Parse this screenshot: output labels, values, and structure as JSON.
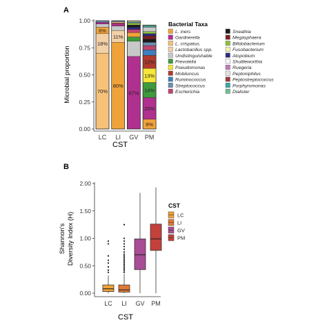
{
  "chart_data": [
    {
      "panel": "A",
      "type": "bar",
      "stacked": true,
      "xlabel": "CST",
      "ylabel": "Microbial proportion",
      "ylim": [
        0,
        1
      ],
      "yticks": [
        "0.00",
        "0.25",
        "0.50",
        "0.75",
        "1.00"
      ],
      "categories": [
        "LC",
        "LI",
        "GV",
        "PM"
      ],
      "legend_title": "Bacterial Taxa",
      "legend_position": "right",
      "taxa": [
        {
          "name": "L. iners",
          "color": "#f0a23a"
        },
        {
          "name": "Gardnerella",
          "color": "#b0308f"
        },
        {
          "name": "L. crispatus.",
          "color": "#f6c27a"
        },
        {
          "name": "Lactobacillus spp.",
          "color": "#f3d0a6"
        },
        {
          "name": "Undistinguishable",
          "color": "#c8c8c8"
        },
        {
          "name": "Prevotella",
          "color": "#3e9a3c"
        },
        {
          "name": "Pseudomonas",
          "color": "#f6e73a"
        },
        {
          "name": "Mobiluncus",
          "color": "#b03a2e"
        },
        {
          "name": "Ruminococcus",
          "color": "#3d7fbf"
        },
        {
          "name": "Streptococcus",
          "color": "#6a8fb0"
        },
        {
          "name": "Escherichia",
          "color": "#c0436e"
        },
        {
          "name": "Sneathia",
          "color": "#1a1a1a"
        },
        {
          "name": "Megasphaera",
          "color": "#7a1f1f"
        },
        {
          "name": "Bifidobacterium",
          "color": "#8fbf3a"
        },
        {
          "name": "Fusobacterium",
          "color": "#f7f2b0"
        },
        {
          "name": "Atopobium",
          "color": "#2b2b80"
        },
        {
          "name": "Shuttleworthia",
          "color": "#f8f8f8"
        },
        {
          "name": "Ruegeria",
          "color": "#c27bb8"
        },
        {
          "name": "Peptoniphilus",
          "color": "#e3e3e3"
        },
        {
          "name": "Peptostreptococcus",
          "color": "#9b3a3a"
        },
        {
          "name": "Porphyromonas",
          "color": "#3aa7a7"
        },
        {
          "name": "Dialister",
          "color": "#6fbf8f"
        }
      ],
      "stacks": {
        "LC": [
          {
            "taxon": "L. crispatus.",
            "value": 0.7,
            "label": "70%"
          },
          {
            "taxon": "Lactobacillus spp.",
            "value": 0.18,
            "label": "18%"
          },
          {
            "taxon": "L. iners",
            "value": 0.06,
            "label": "6%"
          },
          {
            "taxon": "Undistinguishable",
            "value": 0.03
          },
          {
            "taxon": "Gardnerella",
            "value": 0.015
          },
          {
            "taxon": "Streptococcus",
            "value": 0.015
          }
        ],
        "LI": [
          {
            "taxon": "L. iners",
            "value": 0.8,
            "label": "80%"
          },
          {
            "taxon": "Lactobacillus spp.",
            "value": 0.11,
            "label": "11%"
          },
          {
            "taxon": "Undistinguishable",
            "value": 0.04
          },
          {
            "taxon": "Gardnerella",
            "value": 0.02
          },
          {
            "taxon": "Escherichia",
            "value": 0.01
          },
          {
            "taxon": "L. crispatus.",
            "value": 0.01
          },
          {
            "taxon": "Streptococcus",
            "value": 0.01
          }
        ],
        "GV": [
          {
            "taxon": "Gardnerella",
            "value": 0.67,
            "label": "67%"
          },
          {
            "taxon": "Undistinguishable",
            "value": 0.14
          },
          {
            "taxon": "Prevotella",
            "value": 0.04
          },
          {
            "taxon": "L. iners",
            "value": 0.04
          },
          {
            "taxon": "Escherichia",
            "value": 0.03
          },
          {
            "taxon": "Atopobium",
            "value": 0.02
          },
          {
            "taxon": "Sneathia",
            "value": 0.02
          },
          {
            "taxon": "Bifidobacterium",
            "value": 0.02
          },
          {
            "taxon": "Ruminococcus",
            "value": 0.01
          },
          {
            "taxon": "Fusobacterium",
            "value": 0.01
          }
        ],
        "PM": [
          {
            "taxon": "L. iners",
            "value": 0.09,
            "label": "9%"
          },
          {
            "taxon": "Gardnerella",
            "value": 0.2,
            "label": "20%"
          },
          {
            "taxon": "Prevotella",
            "value": 0.14,
            "label": "14%"
          },
          {
            "taxon": "Pseudomonas",
            "value": 0.13,
            "label": "13%"
          },
          {
            "taxon": "Mobiluncus",
            "value": 0.12,
            "label": "12%"
          },
          {
            "taxon": "Ruminococcus",
            "value": 0.05
          },
          {
            "taxon": "Escherichia",
            "value": 0.04
          },
          {
            "taxon": "Streptococcus",
            "value": 0.03
          },
          {
            "taxon": "Sneathia",
            "value": 0.03
          },
          {
            "taxon": "Megasphaera",
            "value": 0.03
          },
          {
            "taxon": "Atopobium",
            "value": 0.02
          },
          {
            "taxon": "Bifidobacterium",
            "value": 0.02
          },
          {
            "taxon": "Undistinguishable",
            "value": 0.04
          },
          {
            "taxon": "Porphyromonas",
            "value": 0.01
          },
          {
            "taxon": "Dialister",
            "value": 0.01
          }
        ]
      },
      "grid": false
    },
    {
      "panel": "B",
      "type": "box",
      "xlabel": "CST",
      "ylabel": "Shannon's Diversity Index (H)",
      "ylabel_lines": [
        "Shannon's",
        "Diversity Index (H)"
      ],
      "ylim": [
        0,
        2
      ],
      "yticks": [
        "0.00",
        "0.50",
        "1.00",
        "1.50",
        "2.00"
      ],
      "categories": [
        "LC",
        "LI",
        "GV",
        "PM"
      ],
      "legend_title": "CST",
      "legend_position": "right",
      "series": [
        {
          "name": "LC",
          "color": "#f0a23a",
          "min": 0.0,
          "q1": 0.03,
          "median": 0.08,
          "q3": 0.15,
          "max": 0.32,
          "outliers": [
            0.38,
            0.42,
            0.48,
            0.55,
            0.6,
            0.68,
            0.9,
            0.95
          ]
        },
        {
          "name": "LI",
          "color": "#e07a35",
          "min": 0.0,
          "q1": 0.02,
          "median": 0.06,
          "q3": 0.15,
          "max": 0.35,
          "outliers": [
            0.38,
            0.41,
            0.44,
            0.47,
            0.5,
            0.53,
            0.56,
            0.59,
            0.62,
            0.65,
            0.68,
            0.71,
            0.75,
            0.8,
            0.85,
            0.9,
            0.95,
            1.0,
            1.25
          ]
        },
        {
          "name": "GV",
          "color": "#a94d96",
          "min": 0.0,
          "q1": 0.43,
          "median": 0.7,
          "q3": 0.99,
          "max": 1.83
        },
        {
          "name": "PM",
          "color": "#c3413b",
          "min": 0.0,
          "q1": 0.78,
          "median": 0.99,
          "q3": 1.26,
          "max": 1.93
        }
      ],
      "grid": false
    }
  ]
}
